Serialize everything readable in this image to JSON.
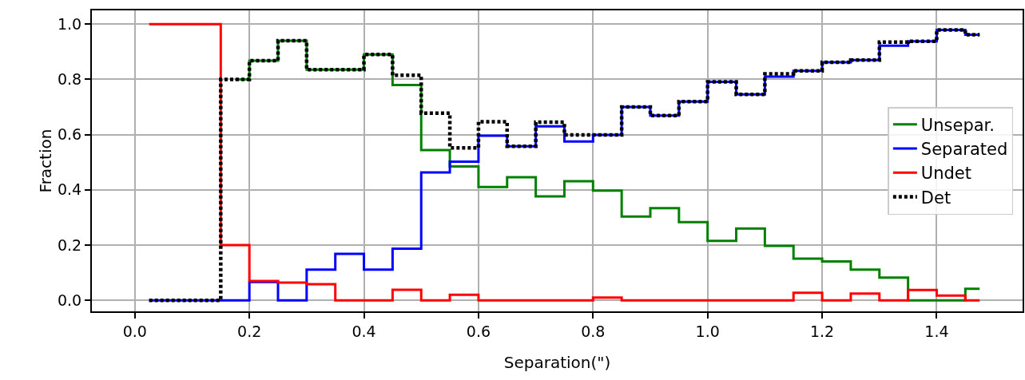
{
  "chart_data": {
    "type": "step",
    "xlabel": "Separation(\")",
    "ylabel": "Fraction",
    "x": [
      0.025,
      0.075,
      0.125,
      0.175,
      0.225,
      0.275,
      0.325,
      0.375,
      0.425,
      0.475,
      0.525,
      0.575,
      0.625,
      0.675,
      0.725,
      0.775,
      0.825,
      0.875,
      0.925,
      0.975,
      1.025,
      1.075,
      1.125,
      1.175,
      1.225,
      1.275,
      1.325,
      1.375,
      1.425,
      1.475
    ],
    "series": [
      {
        "name": "Unsepar.",
        "color": "#008000",
        "line_style": "solid",
        "values": [
          null,
          null,
          null,
          0.8,
          0.868,
          0.94,
          0.835,
          0.835,
          0.89,
          0.78,
          0.544,
          0.485,
          0.41,
          0.446,
          0.376,
          0.431,
          0.397,
          0.303,
          0.334,
          0.283,
          0.215,
          0.26,
          0.197,
          0.151,
          0.141,
          0.111,
          0.082,
          0,
          0,
          0.042
        ]
      },
      {
        "name": "Separated",
        "color": "#0000ff",
        "line_style": "solid",
        "values": [
          0,
          0,
          0,
          0,
          0.066,
          0,
          0.111,
          0.168,
          0.111,
          0.187,
          0.463,
          0.502,
          0.596,
          0.558,
          0.63,
          0.575,
          0.599,
          0.7,
          0.669,
          0.72,
          0.791,
          0.746,
          0.81,
          0.831,
          0.862,
          0.87,
          0.922,
          0.938,
          0.979,
          0.962
        ]
      },
      {
        "name": "Undet",
        "color": "#ff0000",
        "line_style": "solid",
        "values": [
          1,
          1,
          1,
          0.2,
          0.07,
          0.064,
          0.058,
          0,
          0,
          0.038,
          0,
          0.02,
          0,
          0,
          0,
          0,
          0.01,
          0,
          0,
          0,
          0,
          0,
          0,
          0.027,
          0,
          0.024,
          0,
          0.037,
          0.017,
          0
        ]
      },
      {
        "name": "Det",
        "color": "#000000",
        "line_style": "dotted",
        "values": [
          0,
          0,
          0,
          0.8,
          0.868,
          0.94,
          0.835,
          0.835,
          0.89,
          0.815,
          0.678,
          0.552,
          0.647,
          0.558,
          0.645,
          0.599,
          0.599,
          0.7,
          0.669,
          0.72,
          0.791,
          0.746,
          0.82,
          0.831,
          0.862,
          0.87,
          0.935,
          0.938,
          0.979,
          0.962
        ]
      }
    ],
    "xlim": [
      -0.075,
      1.55
    ],
    "xticks": [
      {
        "value": 0,
        "label": "0.0"
      },
      {
        "value": 0.2,
        "label": "0.2"
      },
      {
        "value": 0.4,
        "label": "0.4"
      },
      {
        "value": 0.6,
        "label": "0.6"
      },
      {
        "value": 0.8,
        "label": "0.8"
      },
      {
        "value": 1,
        "label": "1.0"
      },
      {
        "value": 1.2,
        "label": "1.2"
      },
      {
        "value": 1.4,
        "label": "1.4"
      }
    ],
    "ylim": [
      -0.04,
      1.05
    ],
    "yticks": [
      {
        "value": 0,
        "label": "0.0"
      },
      {
        "value": 0.2,
        "label": "0.2"
      },
      {
        "value": 0.4,
        "label": "0.4"
      },
      {
        "value": 0.6,
        "label": "0.6"
      },
      {
        "value": 0.8,
        "label": "0.8"
      },
      {
        "value": 1,
        "label": "1.0"
      }
    ],
    "grid": true,
    "legend": "right"
  }
}
